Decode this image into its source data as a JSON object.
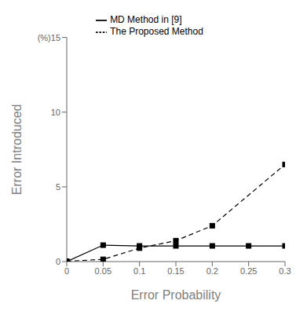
{
  "chart_data": {
    "type": "line",
    "xlabel": "Error Probability",
    "ylabel": "Error Introduced",
    "xlim": [
      0,
      0.3
    ],
    "ylim": [
      0,
      15
    ],
    "xticks": [
      0,
      0.05,
      0.1,
      0.15,
      0.2,
      0.25,
      0.3
    ],
    "yticks": [
      0,
      5,
      10,
      {
        "value": 15,
        "label": "(%)15"
      }
    ],
    "grid": false,
    "legend": "top",
    "series": [
      {
        "name": "The Proposed Method",
        "color": "#000000",
        "line_style": "dashed",
        "marker": "square",
        "x": [
          0,
          0.05,
          0.1,
          0.15,
          0.2,
          0.3
        ],
        "values": [
          0.02,
          0.15,
          0.9,
          1.4,
          2.4,
          6.5
        ]
      },
      {
        "name": "MD Method in [9]",
        "color": "#000000",
        "line_style": "solid",
        "marker": "square",
        "x": [
          0,
          0.05,
          0.1,
          0.15,
          0.2,
          0.25,
          0.3
        ],
        "values": [
          0.0,
          1.1,
          1.05,
          1.05,
          1.05,
          1.05,
          1.05
        ]
      }
    ]
  }
}
